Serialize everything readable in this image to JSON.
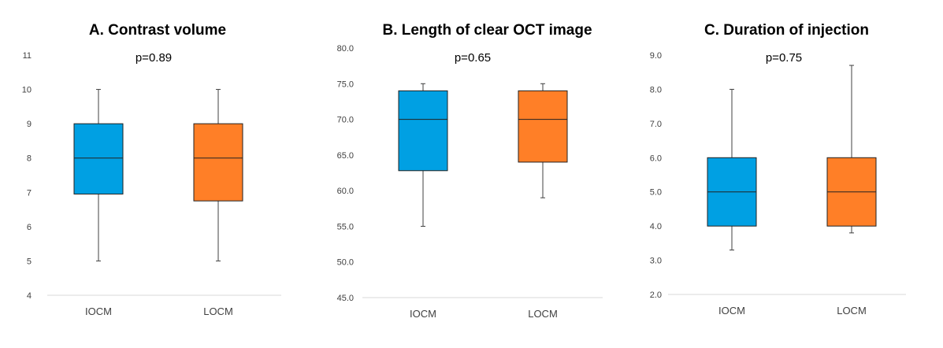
{
  "chart_data": [
    {
      "type": "box",
      "title": "A. Contrast volume",
      "annotation": "p=0.89",
      "ylim": [
        4,
        11
      ],
      "yticks": [
        "4",
        "5",
        "6",
        "7",
        "8",
        "9",
        "10",
        "11"
      ],
      "categories": [
        "IOCM",
        "LOCM"
      ],
      "boxes": [
        {
          "category": "IOCM",
          "min": 5,
          "q1": 6.95,
          "median": 8,
          "q3": 9,
          "max": 10,
          "color": "#00A0E3"
        },
        {
          "category": "LOCM",
          "min": 5,
          "q1": 6.75,
          "median": 8,
          "q3": 9,
          "max": 10,
          "color": "#FF7F27"
        }
      ]
    },
    {
      "type": "box",
      "title": "B. Length of clear OCT image",
      "annotation": "p=0.65",
      "ylim": [
        45,
        80
      ],
      "yticks": [
        "45.0",
        "50.0",
        "55.0",
        "60.0",
        "65.0",
        "70.0",
        "75.0",
        "80.0"
      ],
      "categories": [
        "IOCM",
        "LOCM"
      ],
      "boxes": [
        {
          "category": "IOCM",
          "min": 55,
          "q1": 62.8,
          "median": 70,
          "q3": 74,
          "max": 75,
          "color": "#00A0E3"
        },
        {
          "category": "LOCM",
          "min": 59,
          "q1": 64,
          "median": 70,
          "q3": 74,
          "max": 75,
          "color": "#FF7F27"
        }
      ]
    },
    {
      "type": "box",
      "title": "C. Duration of injection",
      "annotation": "p=0.75",
      "ylim": [
        2,
        9
      ],
      "yticks": [
        "2.0",
        "3.0",
        "4.0",
        "5.0",
        "6.0",
        "7.0",
        "8.0",
        "9.0"
      ],
      "categories": [
        "IOCM",
        "LOCM"
      ],
      "boxes": [
        {
          "category": "IOCM",
          "min": 3.3,
          "q1": 4,
          "median": 5,
          "q3": 6,
          "max": 8,
          "color": "#00A0E3"
        },
        {
          "category": "LOCM",
          "min": 3.8,
          "q1": 4,
          "median": 5,
          "q3": 6,
          "max": 8.7,
          "color": "#FF7F27"
        }
      ]
    }
  ]
}
